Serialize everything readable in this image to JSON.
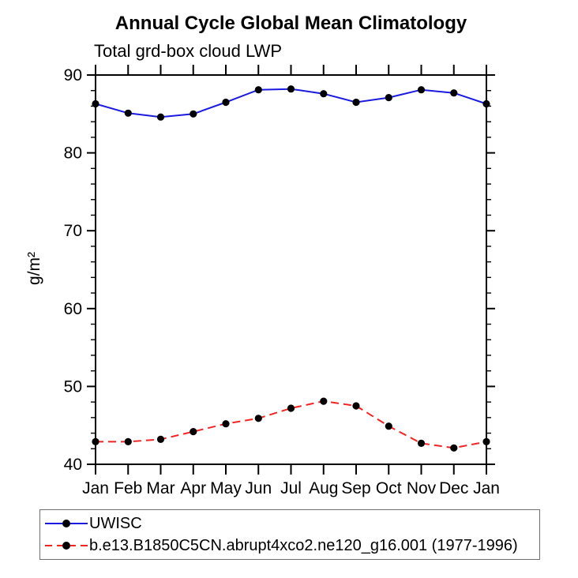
{
  "title": "Annual Cycle Global Mean Climatology",
  "subtitle": "Total grd-box cloud LWP",
  "chart_data": {
    "type": "line",
    "title": "Annual Cycle Global Mean Climatology",
    "subtitle": "Total grd-box cloud LWP",
    "xlabel": "",
    "ylabel": "g/m²",
    "ylim": [
      40,
      90
    ],
    "y_major_ticks": [
      40,
      50,
      60,
      70,
      80,
      90
    ],
    "y_minor_step": 2,
    "grid": false,
    "categories": [
      "Jan",
      "Feb",
      "Mar",
      "Apr",
      "May",
      "Jun",
      "Jul",
      "Aug",
      "Sep",
      "Oct",
      "Nov",
      "Dec",
      "Jan"
    ],
    "series": [
      {
        "name": "UWISC",
        "line_style": "solid",
        "color": "#1a1ae0",
        "marker": "circle",
        "marker_color": "#000000",
        "values": [
          86.3,
          85.1,
          84.6,
          85.0,
          86.5,
          88.1,
          88.2,
          87.6,
          86.5,
          87.1,
          88.1,
          87.7,
          86.3
        ]
      },
      {
        "name": "b.e13.B1850C5CN.abrupt4xco2.ne120_g16.001 (1977-1996)",
        "line_style": "dashed",
        "color": "#f42222",
        "marker": "circle",
        "marker_color": "#000000",
        "values": [
          42.9,
          42.9,
          43.2,
          44.2,
          45.2,
          45.9,
          47.2,
          48.1,
          47.5,
          44.9,
          42.7,
          42.1,
          42.9
        ]
      }
    ],
    "legend_position": "bottom-left-box",
    "axis_color": "#000000"
  }
}
